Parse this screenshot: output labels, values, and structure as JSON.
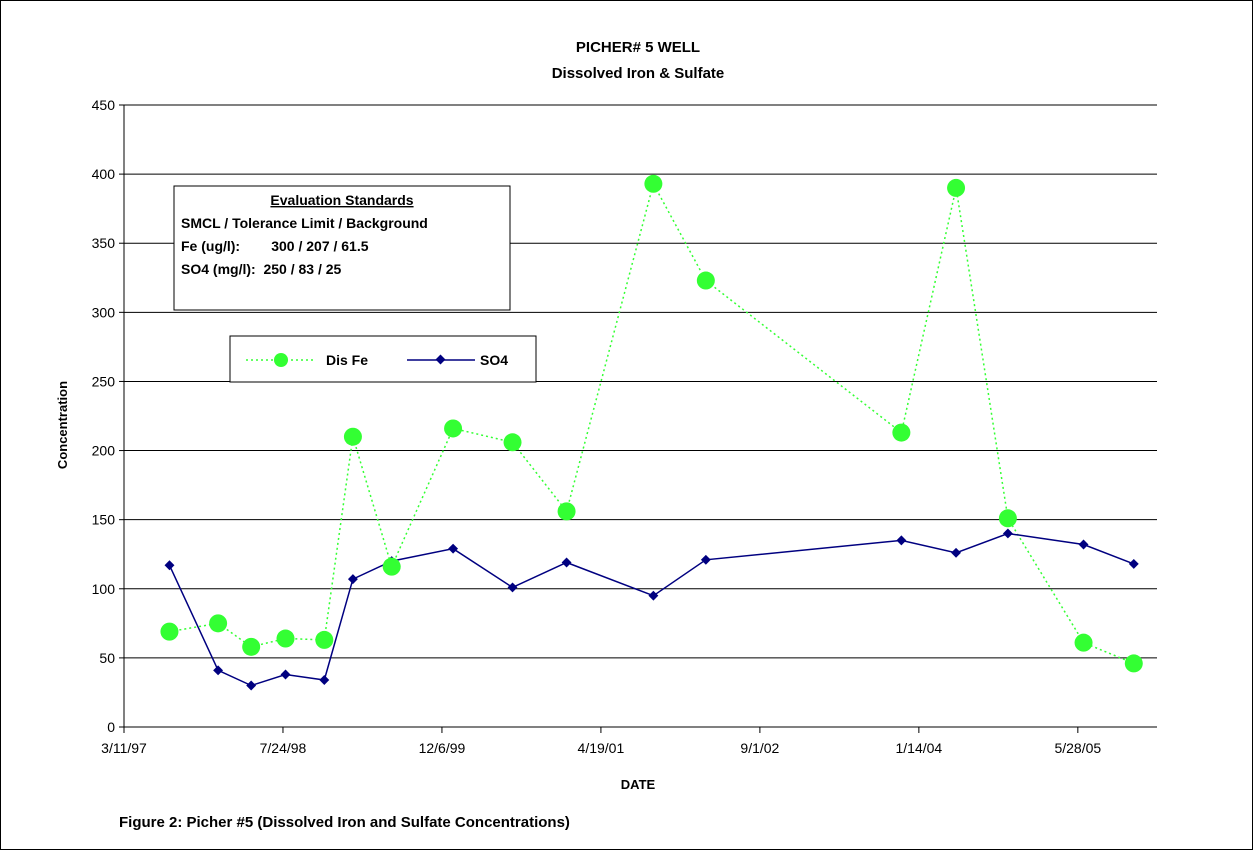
{
  "chart_data": {
    "type": "line",
    "title": "PICHER# 5 WELL",
    "subtitle": "Dissolved Iron & Sulfate",
    "xlabel": "DATE",
    "ylabel": "Concentration",
    "ylim": [
      0,
      450
    ],
    "yticks": [
      0,
      50,
      100,
      150,
      200,
      250,
      300,
      350,
      400,
      450
    ],
    "xlim": [
      "1997-03-11",
      "2006-02-01"
    ],
    "xtick_labels": [
      "3/11/97",
      "7/24/98",
      "12/6/99",
      "4/19/01",
      "9/1/02",
      "1/14/04",
      "5/28/05"
    ],
    "xtick_dates": [
      "1997-03-11",
      "1998-07-24",
      "1999-12-06",
      "2001-04-19",
      "2002-09-01",
      "2004-01-14",
      "2005-05-28"
    ],
    "grid": "horizontal",
    "legend_position": "upper-left",
    "series": [
      {
        "name": "Dis Fe",
        "style": "dotted line with large circle markers",
        "color": "#33ff33",
        "x": [
          "1997-08-01",
          "1998-01-01",
          "1998-04-15",
          "1998-08-01",
          "1998-12-01",
          "1999-03-01",
          "1999-07-01",
          "2000-01-10",
          "2000-07-15",
          "2001-01-01",
          "2001-10-01",
          "2002-03-15",
          "2003-11-20",
          "2004-05-10",
          "2004-10-20",
          "2005-06-15",
          "2005-11-20"
        ],
        "values": [
          69,
          75,
          58,
          64,
          63,
          210,
          116,
          216,
          206,
          156,
          393,
          323,
          213,
          390,
          151,
          61,
          46
        ]
      },
      {
        "name": "SO4",
        "style": "solid line with diamond markers",
        "color": "#000080",
        "x": [
          "1997-08-01",
          "1998-01-01",
          "1998-04-15",
          "1998-08-01",
          "1998-12-01",
          "1999-03-01",
          "1999-07-01",
          "2000-01-10",
          "2000-07-15",
          "2001-01-01",
          "2001-10-01",
          "2002-03-15",
          "2003-11-20",
          "2004-05-10",
          "2004-10-20",
          "2005-06-15",
          "2005-11-20"
        ],
        "values": [
          117,
          41,
          30,
          38,
          34,
          107,
          120,
          129,
          101,
          119,
          95,
          121,
          135,
          126,
          140,
          132,
          118
        ]
      }
    ]
  },
  "standards_box": {
    "heading": "Evaluation Standards",
    "line1": "SMCL / Tolerance Limit / Background",
    "line2": "Fe (ug/l):        300 / 207 / 61.5",
    "line3": "SO4 (mg/l):  250 / 83 / 25"
  },
  "caption": "Figure 2: Picher #5 (Dissolved Iron and Sulfate Concentrations)"
}
